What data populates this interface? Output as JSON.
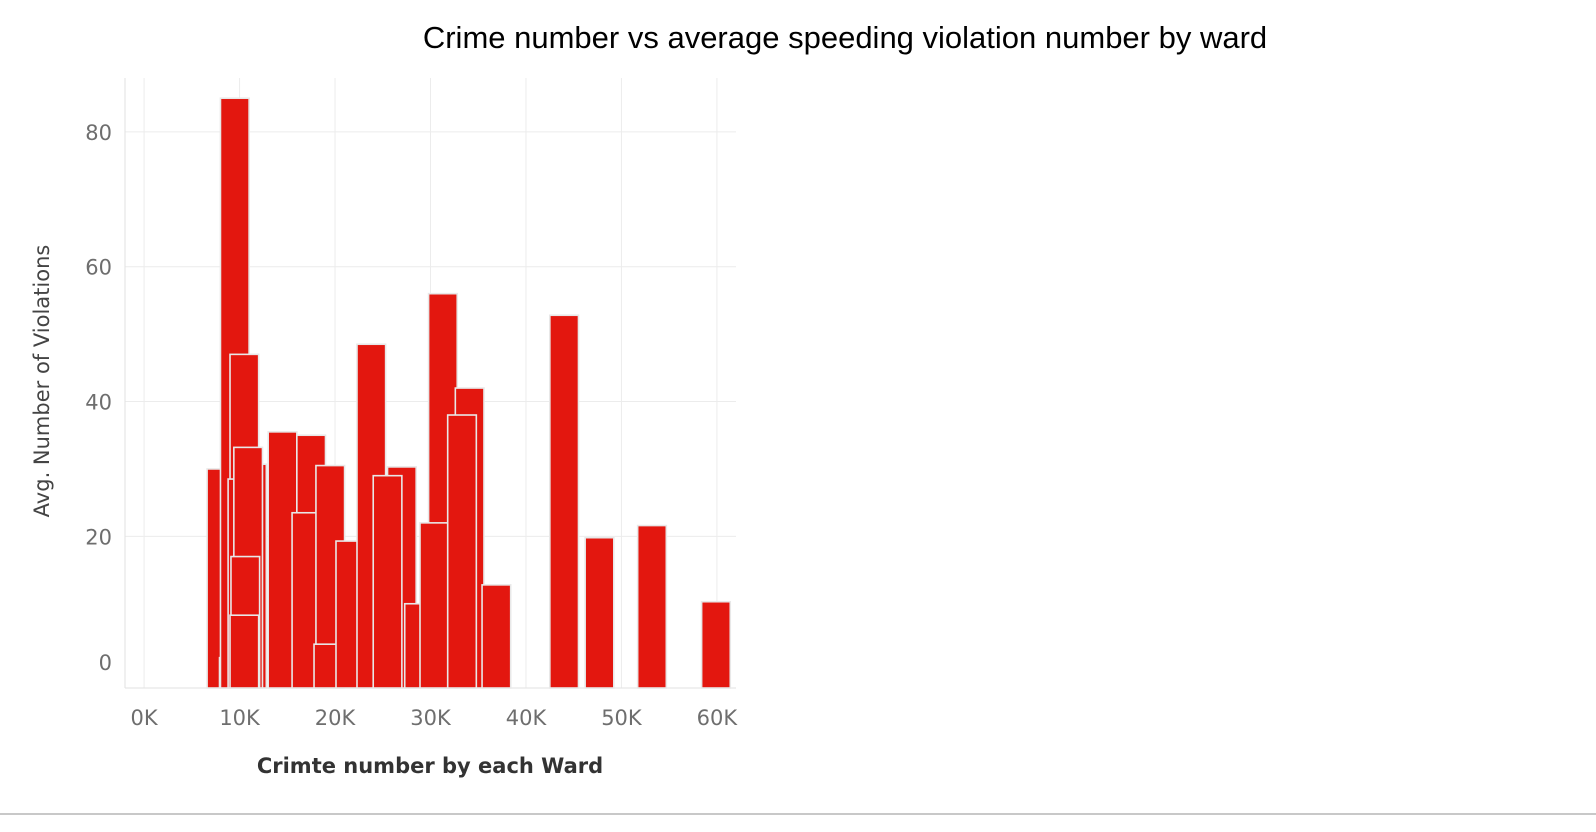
{
  "chart_data": {
    "type": "bar",
    "title": "Crime number vs average speeding violation number by ward",
    "xlabel": "Crimte number by each Ward",
    "ylabel": "Avg. Number of  Violations",
    "xlim": [
      -2000,
      62000
    ],
    "ylim": [
      -2.5,
      88
    ],
    "x_ticks": [
      0,
      10000,
      20000,
      30000,
      40000,
      50000,
      60000
    ],
    "x_tick_labels": [
      "0K",
      "10K",
      "20K",
      "30K",
      "40K",
      "50K",
      "60K"
    ],
    "y_ticks": [
      0,
      20,
      40,
      60,
      80
    ],
    "y_tick_labels": [
      "0",
      "20",
      "40",
      "60",
      "80"
    ],
    "grid": true,
    "bar_color": "#e3170f",
    "bar_width": 3000,
    "points": [
      {
        "x": 6600,
        "y": 30
      },
      {
        "x": 8300,
        "y": 35
      },
      {
        "x": 8100,
        "y": 22
      },
      {
        "x": 7900,
        "y": 2
      },
      {
        "x": 8000,
        "y": 85
      },
      {
        "x": 9000,
        "y": 47
      },
      {
        "x": 8800,
        "y": 28.5
      },
      {
        "x": 9800,
        "y": 30.7
      },
      {
        "x": 9400,
        "y": 33.2
      },
      {
        "x": 9100,
        "y": 17
      },
      {
        "x": 9000,
        "y": 8.3
      },
      {
        "x": 13000,
        "y": 35.5
      },
      {
        "x": 16000,
        "y": 35
      },
      {
        "x": 15500,
        "y": 23.5
      },
      {
        "x": 18000,
        "y": 30.5
      },
      {
        "x": 17800,
        "y": 4
      },
      {
        "x": 20100,
        "y": 19.3
      },
      {
        "x": 22300,
        "y": 48.5
      },
      {
        "x": 25500,
        "y": 30.3
      },
      {
        "x": 24000,
        "y": 29
      },
      {
        "x": 27300,
        "y": 10
      },
      {
        "x": 29800,
        "y": 56
      },
      {
        "x": 28900,
        "y": 22
      },
      {
        "x": 32600,
        "y": 42
      },
      {
        "x": 31800,
        "y": 38
      },
      {
        "x": 35400,
        "y": 12.8
      },
      {
        "x": 42500,
        "y": 52.8
      },
      {
        "x": 46200,
        "y": 19.8
      },
      {
        "x": 51700,
        "y": 21.6
      },
      {
        "x": 58400,
        "y": 10.3
      }
    ]
  }
}
